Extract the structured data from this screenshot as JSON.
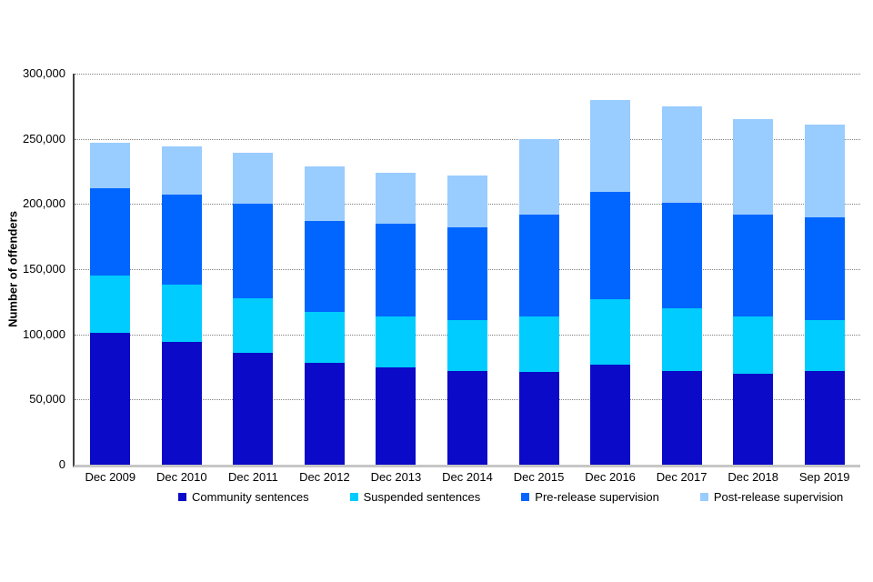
{
  "chart_data": {
    "type": "bar",
    "stacked": true,
    "title": "",
    "ylabel": "Number of offenders",
    "xlabel": "",
    "categories": [
      "Dec 2009",
      "Dec 2010",
      "Dec 2011",
      "Dec 2012",
      "Dec 2013",
      "Dec 2014",
      "Dec 2015",
      "Dec 2016",
      "Dec 2017",
      "Dec 2018",
      "Sep 2019"
    ],
    "series": [
      {
        "name": "Community sentences",
        "color": "#0a0ac8",
        "values": [
          101000,
          94000,
          86000,
          78000,
          75000,
          72000,
          71000,
          77000,
          72000,
          70000,
          72000
        ]
      },
      {
        "name": "Suspended sentences",
        "color": "#00ccff",
        "values": [
          44000,
          44000,
          42000,
          39000,
          39000,
          39000,
          43000,
          50000,
          48000,
          44000,
          39000
        ]
      },
      {
        "name": "Pre-release supervision",
        "color": "#0066ff",
        "values": [
          67000,
          69000,
          72000,
          70000,
          71000,
          71000,
          78000,
          82000,
          81000,
          78000,
          79000
        ]
      },
      {
        "name": "Post-release supervision",
        "color": "#99ccff",
        "values": [
          35000,
          37000,
          39000,
          42000,
          39000,
          40000,
          58000,
          71000,
          74000,
          73000,
          71000
        ]
      }
    ],
    "totals": [
      247000,
      244000,
      239000,
      229000,
      224000,
      222000,
      250000,
      280000,
      275000,
      265000,
      261000
    ],
    "ylim": [
      0,
      300000
    ],
    "ytick_step": 50000,
    "ytick_labels": [
      "0",
      "50,000",
      "100,000",
      "150,000",
      "200,000",
      "250,000",
      "300,000"
    ],
    "grid": "horizontal-dotted",
    "legend_position": "bottom",
    "axis_colors": {
      "y_axis_line": "#404040",
      "x_baseline": "#c6c6c6",
      "gridline": "#808080"
    }
  }
}
